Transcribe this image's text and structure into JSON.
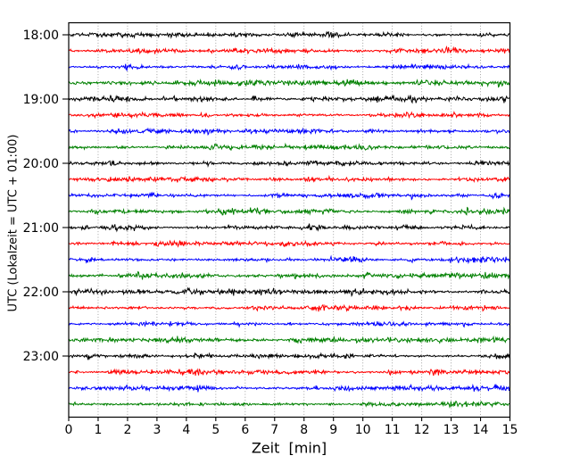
{
  "figure": {
    "xlabel": "Zeit  [min]",
    "ylabel": "UTC (Lokalzeit = UTC + 01:00)",
    "x_ticks": [
      "0",
      "1",
      "2",
      "3",
      "4",
      "5",
      "6",
      "7",
      "8",
      "9",
      "10",
      "11",
      "12",
      "13",
      "14",
      "15"
    ],
    "y_ticks": [
      "18:00",
      "19:00",
      "20:00",
      "21:00",
      "22:00",
      "23:00"
    ],
    "colors": {
      "background": "#ffffff",
      "axis": "#000000",
      "grid": "#999999",
      "text": "#000000"
    }
  },
  "chart_data": {
    "type": "line",
    "subtype": "helicorder-dayplot-seismogram",
    "title": "",
    "xlabel": "Zeit  [min]",
    "ylabel": "UTC (Lokalzeit = UTC + 01:00)",
    "xlim": [
      0,
      15
    ],
    "x_tick_labels": [
      "0",
      "1",
      "2",
      "3",
      "4",
      "5",
      "6",
      "7",
      "8",
      "9",
      "10",
      "11",
      "12",
      "13",
      "14",
      "15"
    ],
    "y_tick_labels": [
      "18:00",
      "19:00",
      "20:00",
      "21:00",
      "22:00",
      "23:00"
    ],
    "time_range_utc": [
      "18:00",
      "24:00"
    ],
    "minutes_per_trace": 15,
    "traces_per_hour": 4,
    "grid": {
      "vertical": "dotted line every 1 minute",
      "horizontal": "none"
    },
    "legend": "none",
    "color_cycle": [
      "#000000",
      "#ff0000",
      "#0000ff",
      "#008000"
    ],
    "traces": [
      {
        "start_utc": "18:00",
        "color": "#000000"
      },
      {
        "start_utc": "18:15",
        "color": "#ff0000"
      },
      {
        "start_utc": "18:30",
        "color": "#0000ff"
      },
      {
        "start_utc": "18:45",
        "color": "#008000"
      },
      {
        "start_utc": "19:00",
        "color": "#000000"
      },
      {
        "start_utc": "19:15",
        "color": "#ff0000"
      },
      {
        "start_utc": "19:30",
        "color": "#0000ff"
      },
      {
        "start_utc": "19:45",
        "color": "#008000"
      },
      {
        "start_utc": "20:00",
        "color": "#000000"
      },
      {
        "start_utc": "20:15",
        "color": "#ff0000"
      },
      {
        "start_utc": "20:30",
        "color": "#0000ff"
      },
      {
        "start_utc": "20:45",
        "color": "#008000"
      },
      {
        "start_utc": "21:00",
        "color": "#000000"
      },
      {
        "start_utc": "21:15",
        "color": "#ff0000"
      },
      {
        "start_utc": "21:30",
        "color": "#0000ff"
      },
      {
        "start_utc": "21:45",
        "color": "#008000"
      },
      {
        "start_utc": "22:00",
        "color": "#000000"
      },
      {
        "start_utc": "22:15",
        "color": "#ff0000"
      },
      {
        "start_utc": "22:30",
        "color": "#0000ff"
      },
      {
        "start_utc": "22:45",
        "color": "#008000"
      },
      {
        "start_utc": "23:00",
        "color": "#000000"
      },
      {
        "start_utc": "23:15",
        "color": "#ff0000"
      },
      {
        "start_utc": "23:30",
        "color": "#0000ff"
      },
      {
        "start_utc": "23:45",
        "color": "#008000"
      }
    ],
    "signal": "continuous flat low-amplitude background noise on every trace; no visible seismic events"
  }
}
